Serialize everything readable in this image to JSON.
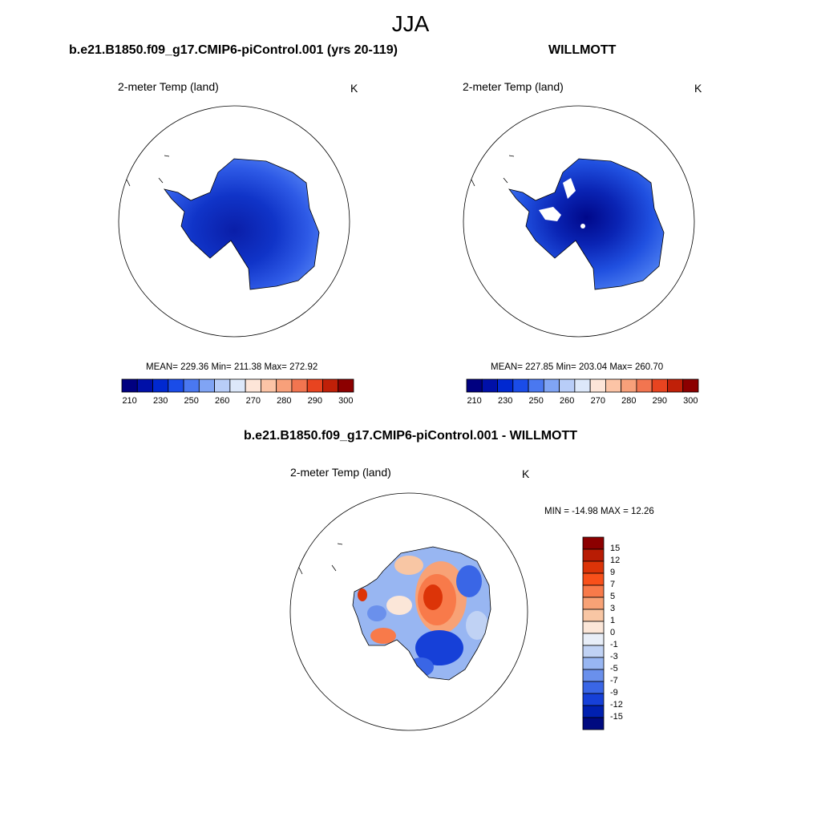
{
  "figure": {
    "title": "JJA"
  },
  "panels": [
    {
      "title": "b.e21.B1850.f09_g17.CMIP6-piControl.001 (yrs 20-119)",
      "variable": "2-meter Temp (land)",
      "units": "K",
      "stats_text": "MEAN= 229.36  Min= 211.38  Max= 272.92"
    },
    {
      "title": "WILLMOTT",
      "variable": "2-meter Temp (land)",
      "units": "K",
      "stats_text": "MEAN= 227.85  Min= 203.04  Max= 260.70"
    },
    {
      "title": "b.e21.B1850.f09_g17.CMIP6-piControl.001 - WILLMOTT",
      "variable": "2-meter Temp (land)",
      "units": "K",
      "stats_text": "MIN = -14.98 MAX =  12.26"
    }
  ],
  "chart_data": [
    {
      "type": "heatmap",
      "title": "b.e21.B1850.f09_g17.CMIP6-piControl.001 (yrs 20-119)",
      "field": "2-meter Temp (land), JJA, Antarctica polar stereographic",
      "units": "K",
      "mean": 229.36,
      "min": 211.38,
      "max": 272.92,
      "colorbar_levels": [
        205,
        210,
        220,
        230,
        240,
        250,
        255,
        260,
        265,
        270,
        275,
        280,
        285,
        290,
        295,
        300
      ],
      "colorbar_tick_labels": [
        "210",
        "230",
        "250",
        "260",
        "270",
        "280",
        "290",
        "300"
      ],
      "colorbar_colors": [
        "#000080",
        "#0010a8",
        "#0028d0",
        "#1a4ce8",
        "#4a78f0",
        "#80a4f4",
        "#b8cdf8",
        "#dde8fa",
        "#fde5d8",
        "#fcc4a6",
        "#f8a07a",
        "#f27550",
        "#e84420",
        "#c02008",
        "#8c0000"
      ]
    },
    {
      "type": "heatmap",
      "title": "WILLMOTT",
      "field": "2-meter Temp (land), JJA, Antarctica polar stereographic",
      "units": "K",
      "mean": 227.85,
      "min": 203.04,
      "max": 260.7,
      "colorbar_levels": [
        205,
        210,
        220,
        230,
        240,
        250,
        255,
        260,
        265,
        270,
        275,
        280,
        285,
        290,
        295,
        300
      ],
      "colorbar_tick_labels": [
        "210",
        "230",
        "250",
        "260",
        "270",
        "280",
        "290",
        "300"
      ],
      "colorbar_colors": [
        "#000080",
        "#0010a8",
        "#0028d0",
        "#1a4ce8",
        "#4a78f0",
        "#80a4f4",
        "#b8cdf8",
        "#dde8fa",
        "#fde5d8",
        "#fcc4a6",
        "#f8a07a",
        "#f27550",
        "#e84420",
        "#c02008",
        "#8c0000"
      ]
    },
    {
      "type": "heatmap",
      "title": "b.e21.B1850.f09_g17.CMIP6-piControl.001 - WILLMOTT",
      "field": "2-meter Temp (land) difference, JJA",
      "units": "K",
      "min": -14.98,
      "max": 12.26,
      "colorbar_tick_labels": [
        "15",
        "12",
        "9",
        "7",
        "5",
        "3",
        "1",
        "0",
        "-1",
        "-3",
        "-5",
        "-7",
        "-9",
        "-12",
        "-15"
      ],
      "colorbar_colors": [
        "#8c0000",
        "#b81c04",
        "#dc3408",
        "#f8501a",
        "#f87a4a",
        "#f8a276",
        "#f8c6a4",
        "#fbe6d8",
        "#e8eef8",
        "#c0d2f4",
        "#98b6f2",
        "#6a90ec",
        "#3a66e6",
        "#1640d8",
        "#0020b0",
        "#000a80"
      ]
    }
  ]
}
